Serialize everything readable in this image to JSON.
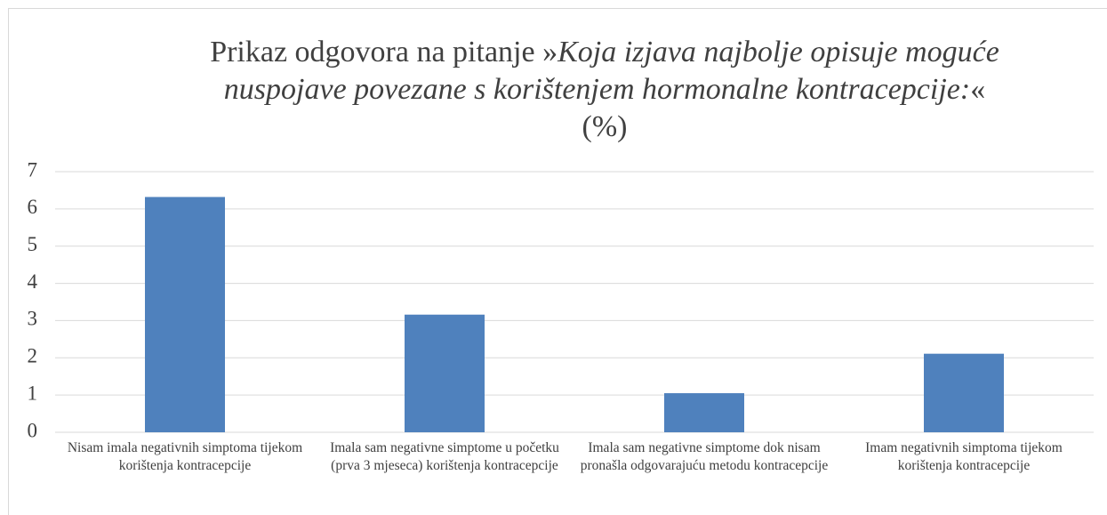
{
  "chart_data": {
    "type": "bar",
    "title": {
      "prefix": "Prikaz odgovora na pitanje »",
      "italic": "Koja izjava najbolje opisuje moguće nuspojave povezane s korištenjem hormonalne kontracepcije:",
      "suffix": "«"
    },
    "subtitle": "(%)",
    "categories": [
      "Nisam imala negativnih simptoma tijekom korištenja kontracepcije",
      "Imala sam negativne simptome u početku (prva 3 mjeseca) korištenja kontracepcije",
      "Imala sam negativne simptome dok nisam pronašla odgovarajuću metodu kontracepcije",
      "Imam negativnih simptoma tijekom korištenja kontracepcije"
    ],
    "values": [
      6.32,
      3.16,
      1.05,
      2.11
    ],
    "color": "#4f81bd",
    "ylim": [
      0,
      7
    ],
    "yticks": [
      0,
      1,
      2,
      3,
      4,
      5,
      6,
      7
    ],
    "grid": true
  }
}
